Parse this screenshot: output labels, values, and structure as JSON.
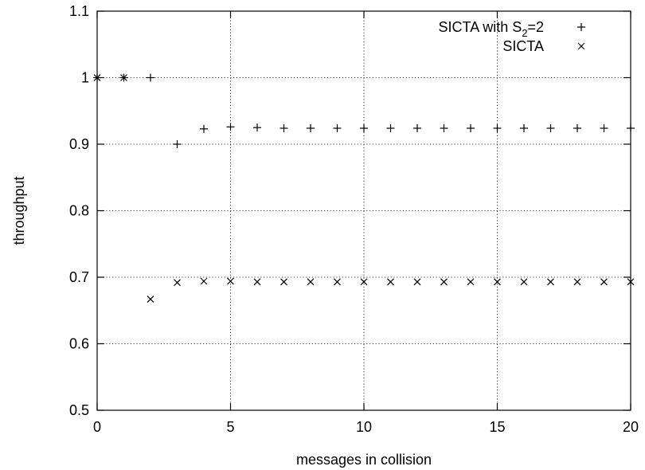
{
  "chart_data": {
    "type": "scatter",
    "title": "",
    "xlabel": "messages in collision",
    "ylabel": "throughput",
    "xlim": [
      0,
      20
    ],
    "ylim": [
      0.5,
      1.1
    ],
    "x_ticks": [
      0,
      5,
      10,
      15,
      20
    ],
    "y_ticks": [
      0.5,
      0.6,
      0.7,
      0.8,
      0.9,
      1,
      1.1
    ],
    "x_tick_labels": [
      "0",
      "5",
      "10",
      "15",
      "20"
    ],
    "y_tick_labels": [
      "0.5",
      "0.6",
      "0.7",
      "0.8",
      "0.9",
      "1",
      "1.1"
    ],
    "grid": true,
    "legend_position": "top-right",
    "series": [
      {
        "name": "SICTA with S2=2",
        "legend_parts": [
          "SICTA with S",
          "2",
          "=2"
        ],
        "marker": "plus",
        "x": [
          0,
          1,
          2,
          3,
          4,
          5,
          6,
          7,
          8,
          9,
          10,
          11,
          12,
          13,
          14,
          15,
          16,
          17,
          18,
          19,
          20
        ],
        "y": [
          1.0,
          1.0,
          1.0,
          0.9,
          0.923,
          0.926,
          0.925,
          0.924,
          0.924,
          0.924,
          0.924,
          0.924,
          0.924,
          0.924,
          0.924,
          0.924,
          0.924,
          0.924,
          0.924,
          0.924,
          0.924
        ]
      },
      {
        "name": "SICTA",
        "legend_parts": [
          "SICTA"
        ],
        "marker": "cross",
        "x": [
          0,
          1,
          2,
          3,
          4,
          5,
          6,
          7,
          8,
          9,
          10,
          11,
          12,
          13,
          14,
          15,
          16,
          17,
          18,
          19,
          20
        ],
        "y": [
          1.0,
          1.0,
          0.667,
          0.692,
          0.694,
          0.694,
          0.693,
          0.693,
          0.693,
          0.693,
          0.693,
          0.693,
          0.693,
          0.693,
          0.693,
          0.693,
          0.693,
          0.693,
          0.693,
          0.693,
          0.693
        ]
      }
    ]
  }
}
